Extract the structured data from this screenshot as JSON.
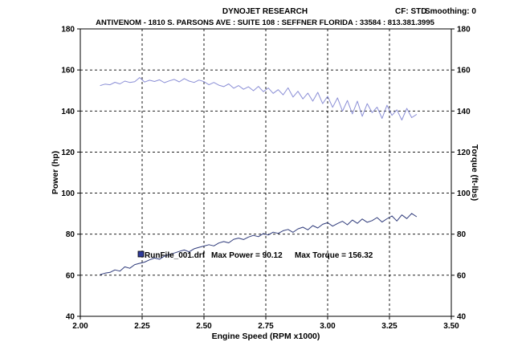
{
  "header": {
    "title": "DYNOJET RESEARCH",
    "subtitle": "ANTIVENOM - 1810 S. PARSONS AVE : SUITE 108 : SEFFNER FLORIDA : 33584 : 813.381.3995",
    "cf_label": "CF: STD",
    "smoothing_label": "Smoothing: 0"
  },
  "chart_data": {
    "type": "line",
    "title": "DYNOJET RESEARCH",
    "xlabel": "Engine Speed (RPM x1000)",
    "ylabel_left": "Power (hp)",
    "ylabel_right": "Torque (ft-lbs)",
    "xlim": [
      2.0,
      3.5
    ],
    "ylim_left": [
      40,
      180
    ],
    "ylim_right": [
      40,
      180
    ],
    "x_ticks": [
      "2.00",
      "2.25",
      "2.50",
      "2.75",
      "3.00",
      "3.25",
      "3.50"
    ],
    "y_ticks_left": [
      "40",
      "60",
      "80",
      "100",
      "120",
      "140",
      "160",
      "180"
    ],
    "y_ticks_right": [
      "40",
      "60",
      "80",
      "100",
      "120",
      "140",
      "160",
      "180"
    ],
    "grid": true,
    "legend": {
      "run_file": "RunFile_001.drf",
      "max_power_label": "Max Power = 90.12",
      "max_torque_label": "Max Torque = 156.32"
    },
    "series": [
      {
        "axis": "left",
        "color": "#2e3a7a",
        "x": [
          2.08,
          2.1,
          2.12,
          2.14,
          2.16,
          2.18,
          2.2,
          2.22,
          2.24,
          2.26,
          2.28,
          2.3,
          2.32,
          2.34,
          2.36,
          2.38,
          2.4,
          2.42,
          2.44,
          2.46,
          2.48,
          2.5,
          2.52,
          2.54,
          2.56,
          2.58,
          2.6,
          2.62,
          2.64,
          2.66,
          2.68,
          2.7,
          2.72,
          2.74,
          2.76,
          2.78,
          2.8,
          2.82,
          2.84,
          2.86,
          2.88,
          2.9,
          2.92,
          2.94,
          2.96,
          2.98,
          3.0,
          3.02,
          3.04,
          3.06,
          3.08,
          3.1,
          3.12,
          3.14,
          3.16,
          3.18,
          3.2,
          3.22,
          3.24,
          3.26,
          3.28,
          3.3,
          3.32,
          3.34,
          3.36
        ],
        "y": [
          60.3,
          61.0,
          61.4,
          62.6,
          62.0,
          64.1,
          63.4,
          65.2,
          65.8,
          66.4,
          67.5,
          68.4,
          67.8,
          69.3,
          70.1,
          70.8,
          71.6,
          72.3,
          71.4,
          72.9,
          73.6,
          74.2,
          74.9,
          74.3,
          75.7,
          76.4,
          75.8,
          77.5,
          78.1,
          77.4,
          78.6,
          79.4,
          78.8,
          80.3,
          79.6,
          81.0,
          80.4,
          81.7,
          82.3,
          80.9,
          82.6,
          83.4,
          82.1,
          84.2,
          83.0,
          84.8,
          85.6,
          83.9,
          85.2,
          86.3,
          84.6,
          86.9,
          85.3,
          87.4,
          85.8,
          86.6,
          88.1,
          85.9,
          87.5,
          88.9,
          86.4,
          89.4,
          87.6,
          90.1,
          88.5
        ]
      },
      {
        "axis": "right",
        "color": "#8b8fd6",
        "x": [
          2.08,
          2.1,
          2.12,
          2.14,
          2.16,
          2.18,
          2.2,
          2.22,
          2.24,
          2.26,
          2.28,
          2.3,
          2.32,
          2.34,
          2.36,
          2.38,
          2.4,
          2.42,
          2.44,
          2.46,
          2.48,
          2.5,
          2.52,
          2.54,
          2.56,
          2.58,
          2.6,
          2.62,
          2.64,
          2.66,
          2.68,
          2.7,
          2.72,
          2.74,
          2.76,
          2.78,
          2.8,
          2.82,
          2.84,
          2.86,
          2.88,
          2.9,
          2.92,
          2.94,
          2.96,
          2.98,
          3.0,
          3.02,
          3.04,
          3.06,
          3.08,
          3.1,
          3.12,
          3.14,
          3.16,
          3.18,
          3.2,
          3.22,
          3.24,
          3.26,
          3.28,
          3.3,
          3.32,
          3.34,
          3.36
        ],
        "y": [
          152.4,
          153.1,
          152.8,
          154.0,
          153.2,
          154.6,
          153.9,
          154.3,
          156.3,
          154.1,
          155.0,
          154.4,
          155.2,
          153.8,
          154.7,
          155.4,
          154.2,
          155.8,
          154.6,
          153.9,
          155.1,
          154.3,
          152.8,
          153.9,
          152.6,
          151.9,
          153.2,
          151.1,
          152.4,
          150.6,
          151.8,
          149.9,
          152.0,
          149.4,
          151.2,
          148.6,
          150.4,
          147.9,
          151.3,
          146.8,
          149.6,
          145.9,
          148.7,
          144.8,
          149.1,
          143.6,
          147.2,
          141.8,
          146.4,
          139.9,
          145.1,
          138.6,
          144.8,
          137.4,
          143.6,
          139.2,
          141.9,
          136.4,
          142.8,
          137.9,
          140.6,
          135.6,
          141.3,
          136.8,
          138.4
        ]
      }
    ]
  }
}
